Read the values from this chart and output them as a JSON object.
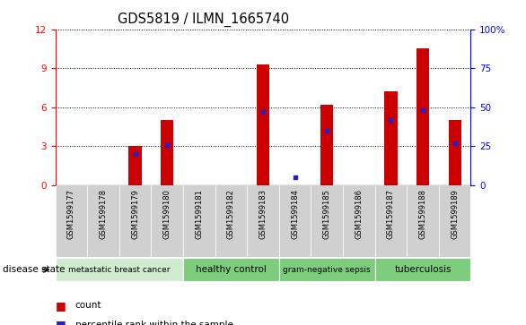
{
  "title": "GDS5819 / ILMN_1665740",
  "samples": [
    "GSM1599177",
    "GSM1599178",
    "GSM1599179",
    "GSM1599180",
    "GSM1599181",
    "GSM1599182",
    "GSM1599183",
    "GSM1599184",
    "GSM1599185",
    "GSM1599186",
    "GSM1599187",
    "GSM1599188",
    "GSM1599189"
  ],
  "counts": [
    0.0,
    0.0,
    3.0,
    5.0,
    0.0,
    0.0,
    9.3,
    0.0,
    6.2,
    0.0,
    7.2,
    10.5,
    5.0
  ],
  "percentiles": [
    0.0,
    0.0,
    20.0,
    26.0,
    0.0,
    0.0,
    47.0,
    5.0,
    35.0,
    0.0,
    42.0,
    48.0,
    27.0
  ],
  "ylim_left": [
    0,
    12
  ],
  "ylim_right": [
    0,
    100
  ],
  "yticks_left": [
    0,
    3,
    6,
    9,
    12
  ],
  "yticks_right": [
    0,
    25,
    50,
    75,
    100
  ],
  "bar_color": "#cc0000",
  "dot_color": "#2222cc",
  "groups": [
    {
      "label": "metastatic breast cancer",
      "start": 0,
      "end": 4,
      "color": "#d0ecd0"
    },
    {
      "label": "healthy control",
      "start": 4,
      "end": 7,
      "color": "#7ccd7c"
    },
    {
      "label": "gram-negative sepsis",
      "start": 7,
      "end": 10,
      "color": "#7ccd7c"
    },
    {
      "label": "tuberculosis",
      "start": 10,
      "end": 13,
      "color": "#7ccd7c"
    }
  ],
  "bar_width": 0.4,
  "legend_count_color": "#cc0000",
  "legend_pct_color": "#2222cc"
}
